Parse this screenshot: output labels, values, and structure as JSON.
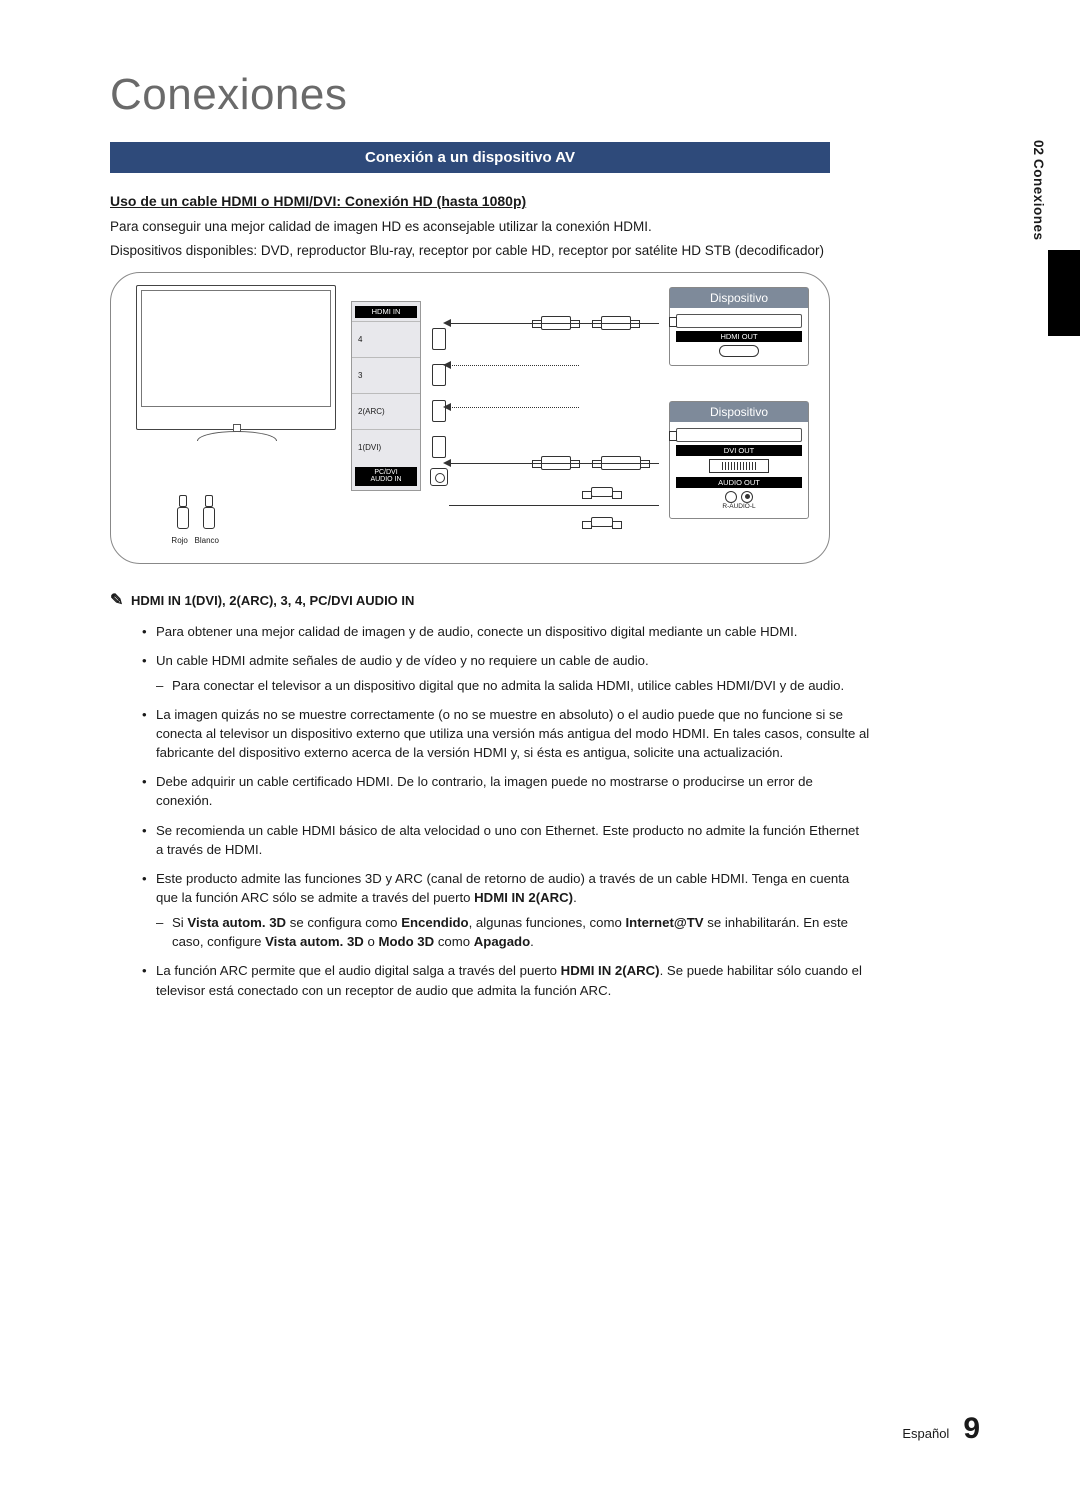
{
  "sideTab": {
    "num": "02",
    "label": "Conexiones"
  },
  "sectionTitle": "Conexiones",
  "blueBar": "Conexión a un dispositivo AV",
  "subhead": "Uso de un cable HDMI o HDMI/DVI: Conexión HD (hasta 1080p)",
  "intro": [
    "Para conseguir una mejor calidad de imagen HD es aconsejable utilizar la conexión HDMI.",
    "Dispositivos disponibles: DVD, reproductor Blu-ray, receptor por cable HD, receptor por satélite HD STB (decodificador)"
  ],
  "diagram": {
    "hdmiHeader": "HDMI IN",
    "ports": [
      "4",
      "3",
      "2(ARC)",
      "1(DVI)"
    ],
    "pcdvi1": "PC/DVI",
    "pcdvi2": "AUDIO IN",
    "jacks": {
      "left": "Rojo",
      "right": "Blanco"
    },
    "device1": {
      "name": "Dispositivo",
      "tag": "HDMI OUT"
    },
    "device2": {
      "name": "Dispositivo",
      "tag1": "DVI OUT",
      "tag2": "AUDIO OUT",
      "audioLbl": "R-AUDIO-L"
    }
  },
  "noteHead": "HDMI IN 1(DVI), 2(ARC), 3, 4, PC/DVI AUDIO IN",
  "bullets": [
    {
      "text": "Para obtener una mejor calidad de imagen y de audio, conecte un dispositivo digital mediante un cable HDMI."
    },
    {
      "text": "Un cable HDMI admite señales de audio y de vídeo y no requiere un cable de audio.",
      "sub": [
        {
          "text": "Para conectar el televisor a un dispositivo digital que no admita la salida HDMI, utilice cables HDMI/DVI y de audio."
        }
      ]
    },
    {
      "text": "La imagen quizás no se muestre correctamente (o no se muestre en absoluto) o el audio puede que no funcione si se conecta al televisor un dispositivo externo que utiliza una versión más antigua del modo HDMI. En tales casos, consulte al fabricante del dispositivo externo acerca de la versión HDMI y, si ésta es antigua, solicite una actualización."
    },
    {
      "text": "Debe adquirir un cable certificado HDMI. De lo contrario, la imagen puede no mostrarse o producirse un error de conexión."
    },
    {
      "text": "Se recomienda un cable HDMI básico de alta velocidad o uno con Ethernet. Este producto no admite la función Ethernet a través de HDMI."
    },
    {
      "html": "Este producto admite las funciones 3D y ARC (canal de retorno de audio) a través de un cable HDMI. Tenga en cuenta que la función ARC sólo se admite a través del puerto <b class='inline'>HDMI IN 2(ARC)</b>.",
      "sub": [
        {
          "html": "Si <b class='inline'>Vista autom. 3D</b> se configura como <b class='inline'>Encendido</b>, algunas funciones, como <b class='inline'>Internet@TV</b> se inhabilitarán. En este caso, configure <b class='inline'>Vista autom. 3D</b> o <b class='inline'>Modo 3D</b> como <b class='inline'>Apagado</b>."
        }
      ]
    },
    {
      "html": "La función ARC permite que el audio digital salga a través del puerto <b class='inline'>HDMI IN 2(ARC)</b>. Se puede habilitar sólo cuando el televisor está conectado con un receptor de audio que admita la función ARC."
    }
  ],
  "footer": {
    "lang": "Español",
    "page": "9"
  },
  "colors": {
    "barBg": "#2e4a7a",
    "deviceHeader": "#7e8a9a",
    "title": "#6a6a6a"
  }
}
